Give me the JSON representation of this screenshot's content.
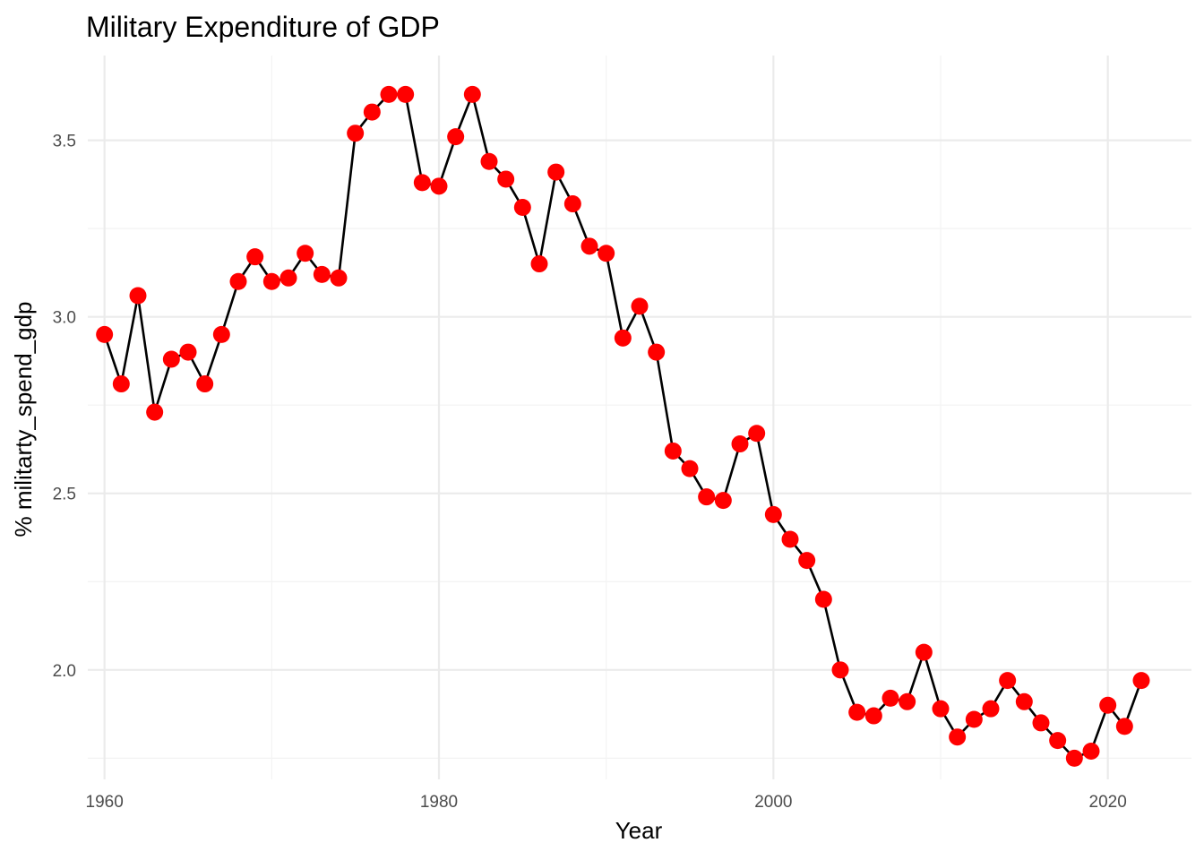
{
  "chart_data": {
    "type": "line",
    "title": "Military Expenditure of GDP",
    "xlabel": "Year",
    "ylabel": "% militarty_spend_gdp",
    "xlim": [
      1959.0,
      2025.0
    ],
    "ylim": [
      1.69,
      3.74
    ],
    "x_ticks": [
      1960,
      1980,
      2000,
      2020
    ],
    "x_minor_ticks": [
      1970,
      1990,
      2010
    ],
    "y_ticks": [
      2.0,
      2.5,
      3.0,
      3.5
    ],
    "y_minor_ticks": [
      1.75,
      2.25,
      2.75,
      3.25
    ],
    "y_tick_labels": [
      "2.0",
      "2.5",
      "3.0",
      "3.5"
    ],
    "grid": true,
    "line_color": "#000000",
    "point_color": "#ff0000",
    "x": [
      1960,
      1961,
      1962,
      1963,
      1964,
      1965,
      1966,
      1967,
      1968,
      1969,
      1970,
      1971,
      1972,
      1973,
      1974,
      1975,
      1976,
      1977,
      1978,
      1979,
      1980,
      1981,
      1982,
      1983,
      1984,
      1985,
      1986,
      1987,
      1988,
      1989,
      1990,
      1991,
      1992,
      1993,
      1994,
      1995,
      1996,
      1997,
      1998,
      1999,
      2000,
      2001,
      2002,
      2003,
      2004,
      2005,
      2006,
      2007,
      2008,
      2009,
      2010,
      2011,
      2012,
      2013,
      2014,
      2015,
      2016,
      2017,
      2018,
      2019,
      2020,
      2021,
      2022
    ],
    "y": [
      2.95,
      2.81,
      3.06,
      2.73,
      2.88,
      2.9,
      2.81,
      2.95,
      3.1,
      3.17,
      3.1,
      3.11,
      3.18,
      3.12,
      3.11,
      3.52,
      3.58,
      3.63,
      3.63,
      3.38,
      3.37,
      3.51,
      3.63,
      3.44,
      3.39,
      3.31,
      3.15,
      3.41,
      3.32,
      3.2,
      3.18,
      2.94,
      3.03,
      2.9,
      2.62,
      2.57,
      2.49,
      2.48,
      2.64,
      2.67,
      2.44,
      2.37,
      2.31,
      2.2,
      2.0,
      1.88,
      1.87,
      1.92,
      1.91,
      2.05,
      1.89,
      1.81,
      1.86,
      1.89,
      1.97,
      1.91,
      1.85,
      1.8,
      1.75,
      1.77,
      1.9,
      1.84,
      1.97
    ]
  }
}
